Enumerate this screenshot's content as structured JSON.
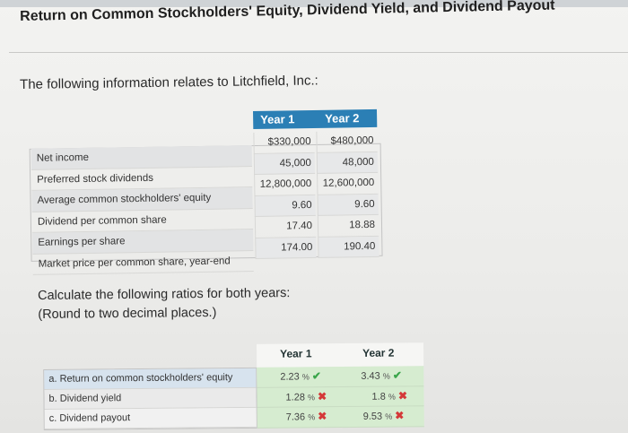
{
  "title": "Return on Common Stockholders' Equity, Dividend Yield, and Dividend Payout",
  "intro": "The following information relates to Litchfield, Inc.:",
  "info_table": {
    "headers": [
      "Year 1",
      "Year 2"
    ],
    "rows": [
      {
        "label": "Net income",
        "y1": "$330,000",
        "y2": "$480,000"
      },
      {
        "label": "Preferred stock dividends",
        "y1": "45,000",
        "y2": "48,000"
      },
      {
        "label": "Average common stockholders' equity",
        "y1": "12,800,000",
        "y2": "12,600,000"
      },
      {
        "label": "Dividend per common share",
        "y1": "9.60",
        "y2": "9.60"
      },
      {
        "label": "Earnings per share",
        "y1": "17.40",
        "y2": "18.88"
      },
      {
        "label": "Market price per common share, year-end",
        "y1": "174.00",
        "y2": "190.40"
      }
    ]
  },
  "instructions": [
    "Calculate the following ratios for both years:",
    "(Round to two decimal places.)"
  ],
  "answer_table": {
    "headers": [
      "Year 1",
      "Year 2"
    ],
    "percent_symbol": "%",
    "rows": [
      {
        "label": "a. Return on common stockholders' equity",
        "y1": "2.23",
        "y1_mark": "✔",
        "y1_status": "correct",
        "y2": "3.43",
        "y2_mark": "✔",
        "y2_status": "correct"
      },
      {
        "label": "b. Dividend yield",
        "y1": "1.28",
        "y1_mark": "✖",
        "y1_status": "incorrect",
        "y2": "1.8",
        "y2_mark": "✖",
        "y2_status": "incorrect"
      },
      {
        "label": "c. Dividend payout",
        "y1": "7.36",
        "y1_mark": "✖",
        "y1_status": "incorrect",
        "y2": "9.53",
        "y2_mark": "✖",
        "y2_status": "incorrect"
      }
    ]
  },
  "colors": {
    "header_blue": "#2b7fb5",
    "answer_green": "#d6ecd0",
    "correct": "#3aa54a",
    "incorrect": "#d43838"
  }
}
